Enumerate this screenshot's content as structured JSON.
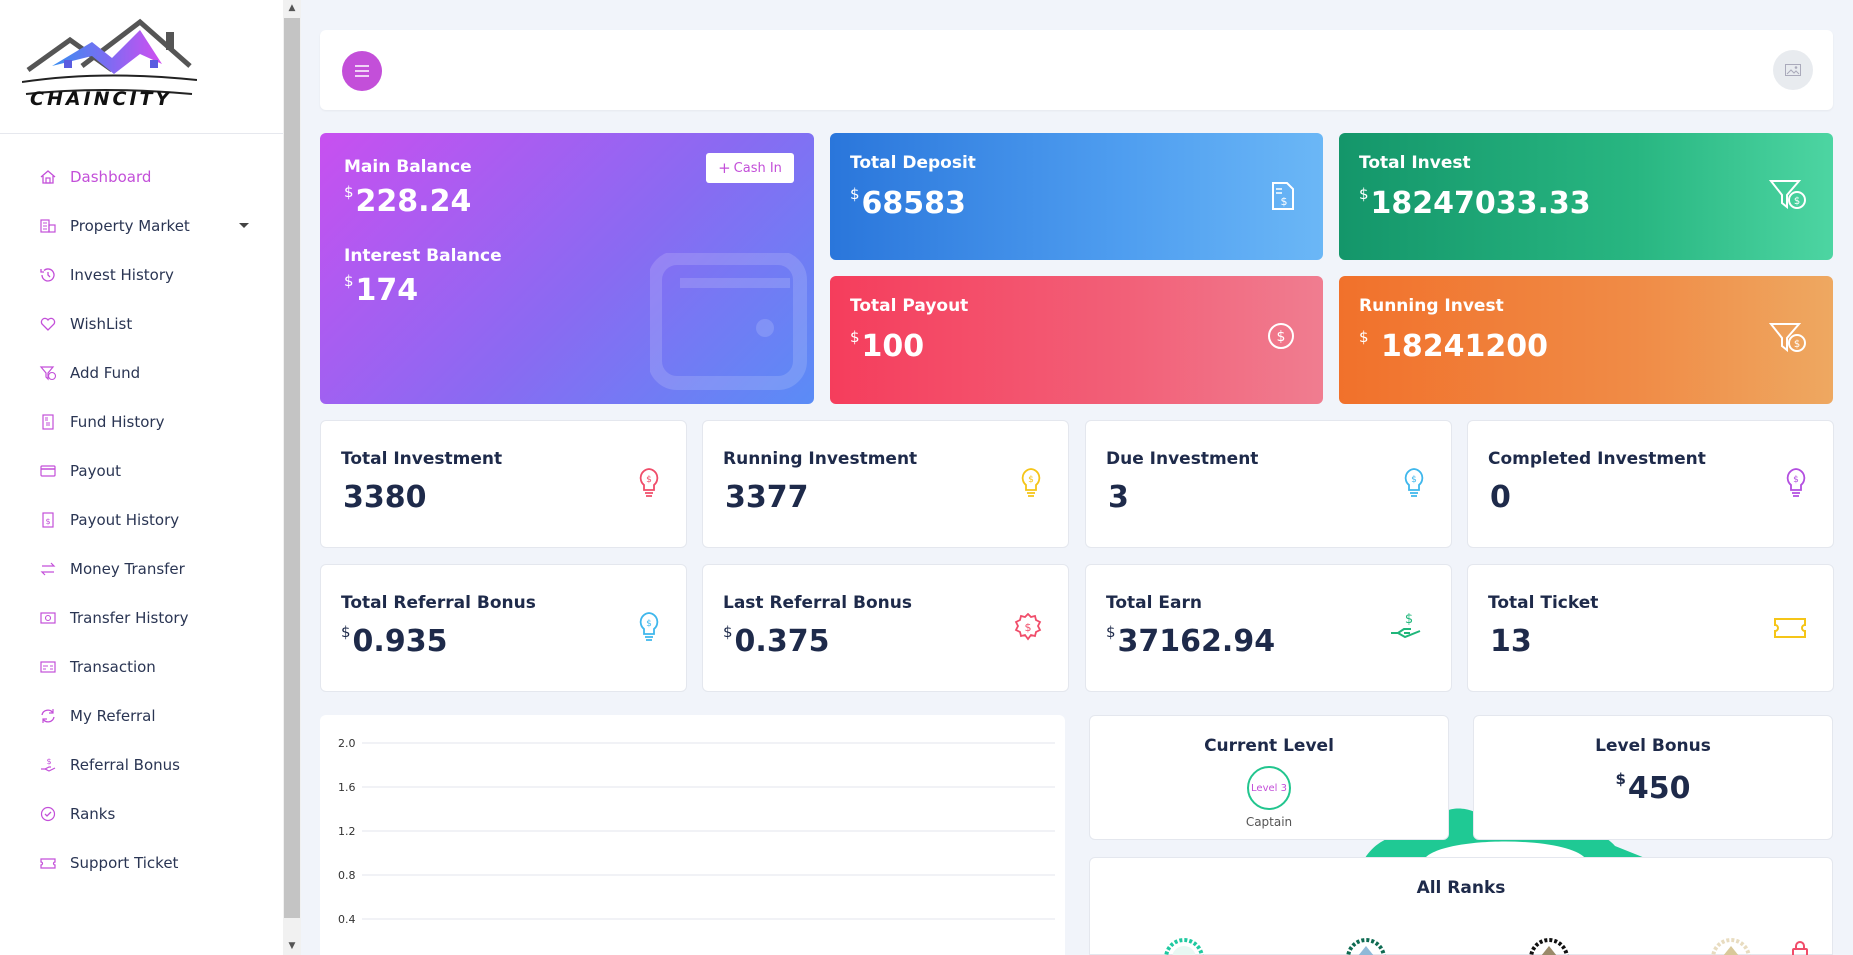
{
  "brand": {
    "logo_text": "CHAINCITY"
  },
  "sidebar": {
    "items": [
      {
        "label": "Dashboard",
        "icon": "home-icon",
        "active": true
      },
      {
        "label": "Property Market",
        "icon": "building-icon",
        "has_submenu": true
      },
      {
        "label": "Invest History",
        "icon": "history-icon"
      },
      {
        "label": "WishList",
        "icon": "heart-icon"
      },
      {
        "label": "Add Fund",
        "icon": "funnel-dollar-icon"
      },
      {
        "label": "Fund History",
        "icon": "file-invoice-icon"
      },
      {
        "label": "Payout",
        "icon": "credit-card-icon"
      },
      {
        "label": "Payout History",
        "icon": "file-dollar-icon"
      },
      {
        "label": "Money Transfer",
        "icon": "exchange-icon"
      },
      {
        "label": "Transfer History",
        "icon": "money-bill-icon"
      },
      {
        "label": "Transaction",
        "icon": "receipt-icon"
      },
      {
        "label": "My Referral",
        "icon": "sync-icon"
      },
      {
        "label": "Referral Bonus",
        "icon": "hand-dollar-icon"
      },
      {
        "label": "Ranks",
        "icon": "badge-check-icon"
      },
      {
        "label": "Support Ticket",
        "icon": "ticket-icon"
      }
    ]
  },
  "topbar": {
    "menu_icon": "hamburger-icon",
    "avatar_icon": "image-placeholder-icon"
  },
  "balance": {
    "main_label": "Main Balance",
    "main_currency": "$",
    "main_value": "228.24",
    "interest_label": "Interest Balance",
    "interest_currency": "$",
    "interest_value": "174",
    "cash_in_label": "Cash In"
  },
  "summary": {
    "deposit": {
      "label": "Total Deposit",
      "currency": "$",
      "value": "68583"
    },
    "invest": {
      "label": "Total Invest",
      "currency": "$",
      "value": "18247033.33"
    },
    "payout": {
      "label": "Total Payout",
      "currency": "$",
      "value": "100"
    },
    "running": {
      "label": "Running Invest",
      "currency": "$",
      "value": " 18241200"
    }
  },
  "stats": [
    {
      "label": "Total Investment",
      "value": "3380",
      "currency": "",
      "icon": "lightbulb-dollar-icon",
      "color": "#f04d6a"
    },
    {
      "label": "Running Investment",
      "value": "3377",
      "currency": "",
      "icon": "lightbulb-dollar-icon",
      "color": "#f5c518"
    },
    {
      "label": "Due Investment",
      "value": "3",
      "currency": "",
      "icon": "lightbulb-dollar-icon",
      "color": "#3fb7ec"
    },
    {
      "label": "Completed Investment",
      "value": "0",
      "currency": "",
      "icon": "lightbulb-dollar-icon",
      "color": "#b34fe0"
    },
    {
      "label": "Total Referral Bonus",
      "value": "0.935",
      "currency": "$",
      "icon": "lightbulb-dollar-icon",
      "color": "#3fb7ec"
    },
    {
      "label": "Last Referral Bonus",
      "value": "0.375",
      "currency": "$",
      "icon": "badge-dollar-icon",
      "color": "#f04d6a"
    },
    {
      "label": "Total Earn",
      "value": "37162.94",
      "currency": "$",
      "icon": "hand-holding-dollar-icon",
      "color": "#1fb67a"
    },
    {
      "label": "Total Ticket",
      "value": "13",
      "currency": "",
      "icon": "ticket-icon",
      "color": "#f5c518"
    }
  ],
  "chart_data": {
    "type": "line",
    "title": "",
    "xlabel": "",
    "ylabel": "",
    "ylim": [
      0,
      2.0
    ],
    "y_ticks": [
      "2.0",
      "1.6",
      "1.2",
      "0.8",
      "0.4"
    ],
    "grid": true,
    "series": []
  },
  "level": {
    "title": "Current Level",
    "badge": "Level 3",
    "name": "Captain"
  },
  "level_bonus": {
    "title": "Level Bonus",
    "currency": "$",
    "value": "450"
  },
  "ranks": {
    "title": "All Ranks"
  },
  "colors": {
    "accent": "#c34fd9",
    "text": "#1e2a4a",
    "bg": "#f1f4fa"
  }
}
